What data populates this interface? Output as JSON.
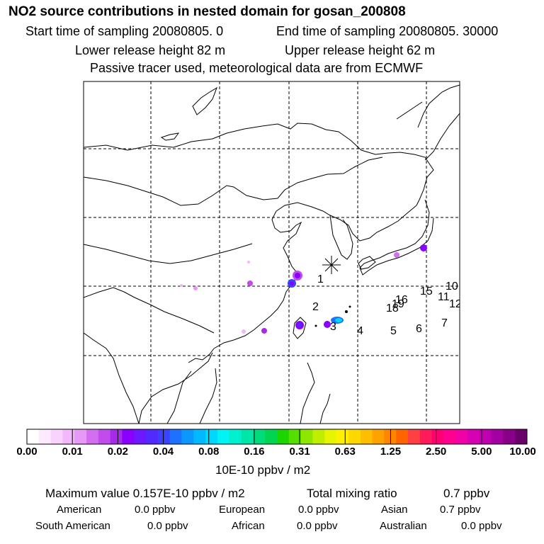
{
  "title": "NO2 source contributions in nested domain for gosan_200808",
  "sampling": {
    "start": "Start time of sampling 20080805.     0",
    "end": "End time of sampling 20080805. 30000"
  },
  "release": {
    "lower": "Lower release height   82 m",
    "upper": "Upper release height   62 m"
  },
  "note": "Passive tracer used, meteorological data are from ECMWF",
  "station_marker": "gosan-star-icon",
  "region_labels": [
    "1",
    "2",
    "3",
    "4",
    "5",
    "6",
    "7",
    "10",
    "11",
    "12",
    "15",
    "16",
    "18",
    "19"
  ],
  "colorbar": {
    "tick_labels": [
      "0.00",
      "0.01",
      "0.02",
      "0.04",
      "0.08",
      "0.16",
      "0.31",
      "0.63",
      "1.25",
      "2.50",
      "5.00",
      "10.00"
    ],
    "colors": [
      "#ffffff",
      "#fdeaff",
      "#f9d2fd",
      "#f3b7fb",
      "#e898f7",
      "#d36ef0",
      "#c14bec",
      "#a52be8",
      "#8a00ff",
      "#6e18ff",
      "#5429ff",
      "#3a42ff",
      "#1e70ff",
      "#0a98ff",
      "#00b9ff",
      "#00d7ff",
      "#00f4f4",
      "#00f0d0",
      "#00e6a8",
      "#00dc7c",
      "#00d451",
      "#1cd400",
      "#56de00",
      "#8fe600",
      "#c0ee00",
      "#e8f400",
      "#fff000",
      "#ffd800",
      "#ffbe00",
      "#ffa200",
      "#ff8400",
      "#ff6400",
      "#ff4040",
      "#ff1a5a",
      "#ff0075",
      "#ff0091",
      "#f200a8",
      "#d900b4",
      "#bf00b0",
      "#a300a3",
      "#870087",
      "#6a006a"
    ],
    "unit": "10E-10 ppbv / m2"
  },
  "summary": {
    "max_label": "Maximum value  0.157E-10 ppbv / m2",
    "total_label": "Total mixing ratio",
    "total_value": "0.7 ppbv",
    "american_label": "American",
    "american_value": "0.0 ppbv",
    "european_label": "European",
    "european_value": "0.0 ppbv",
    "asian_label": "Asian",
    "asian_value": "0.7 ppbv",
    "south_american_label": "South American",
    "south_american_value": "0.0 ppbv",
    "african_label": "African",
    "african_value": "0.0 ppbv",
    "australian_label": "Australian",
    "australian_value": "0.0 ppbv"
  }
}
